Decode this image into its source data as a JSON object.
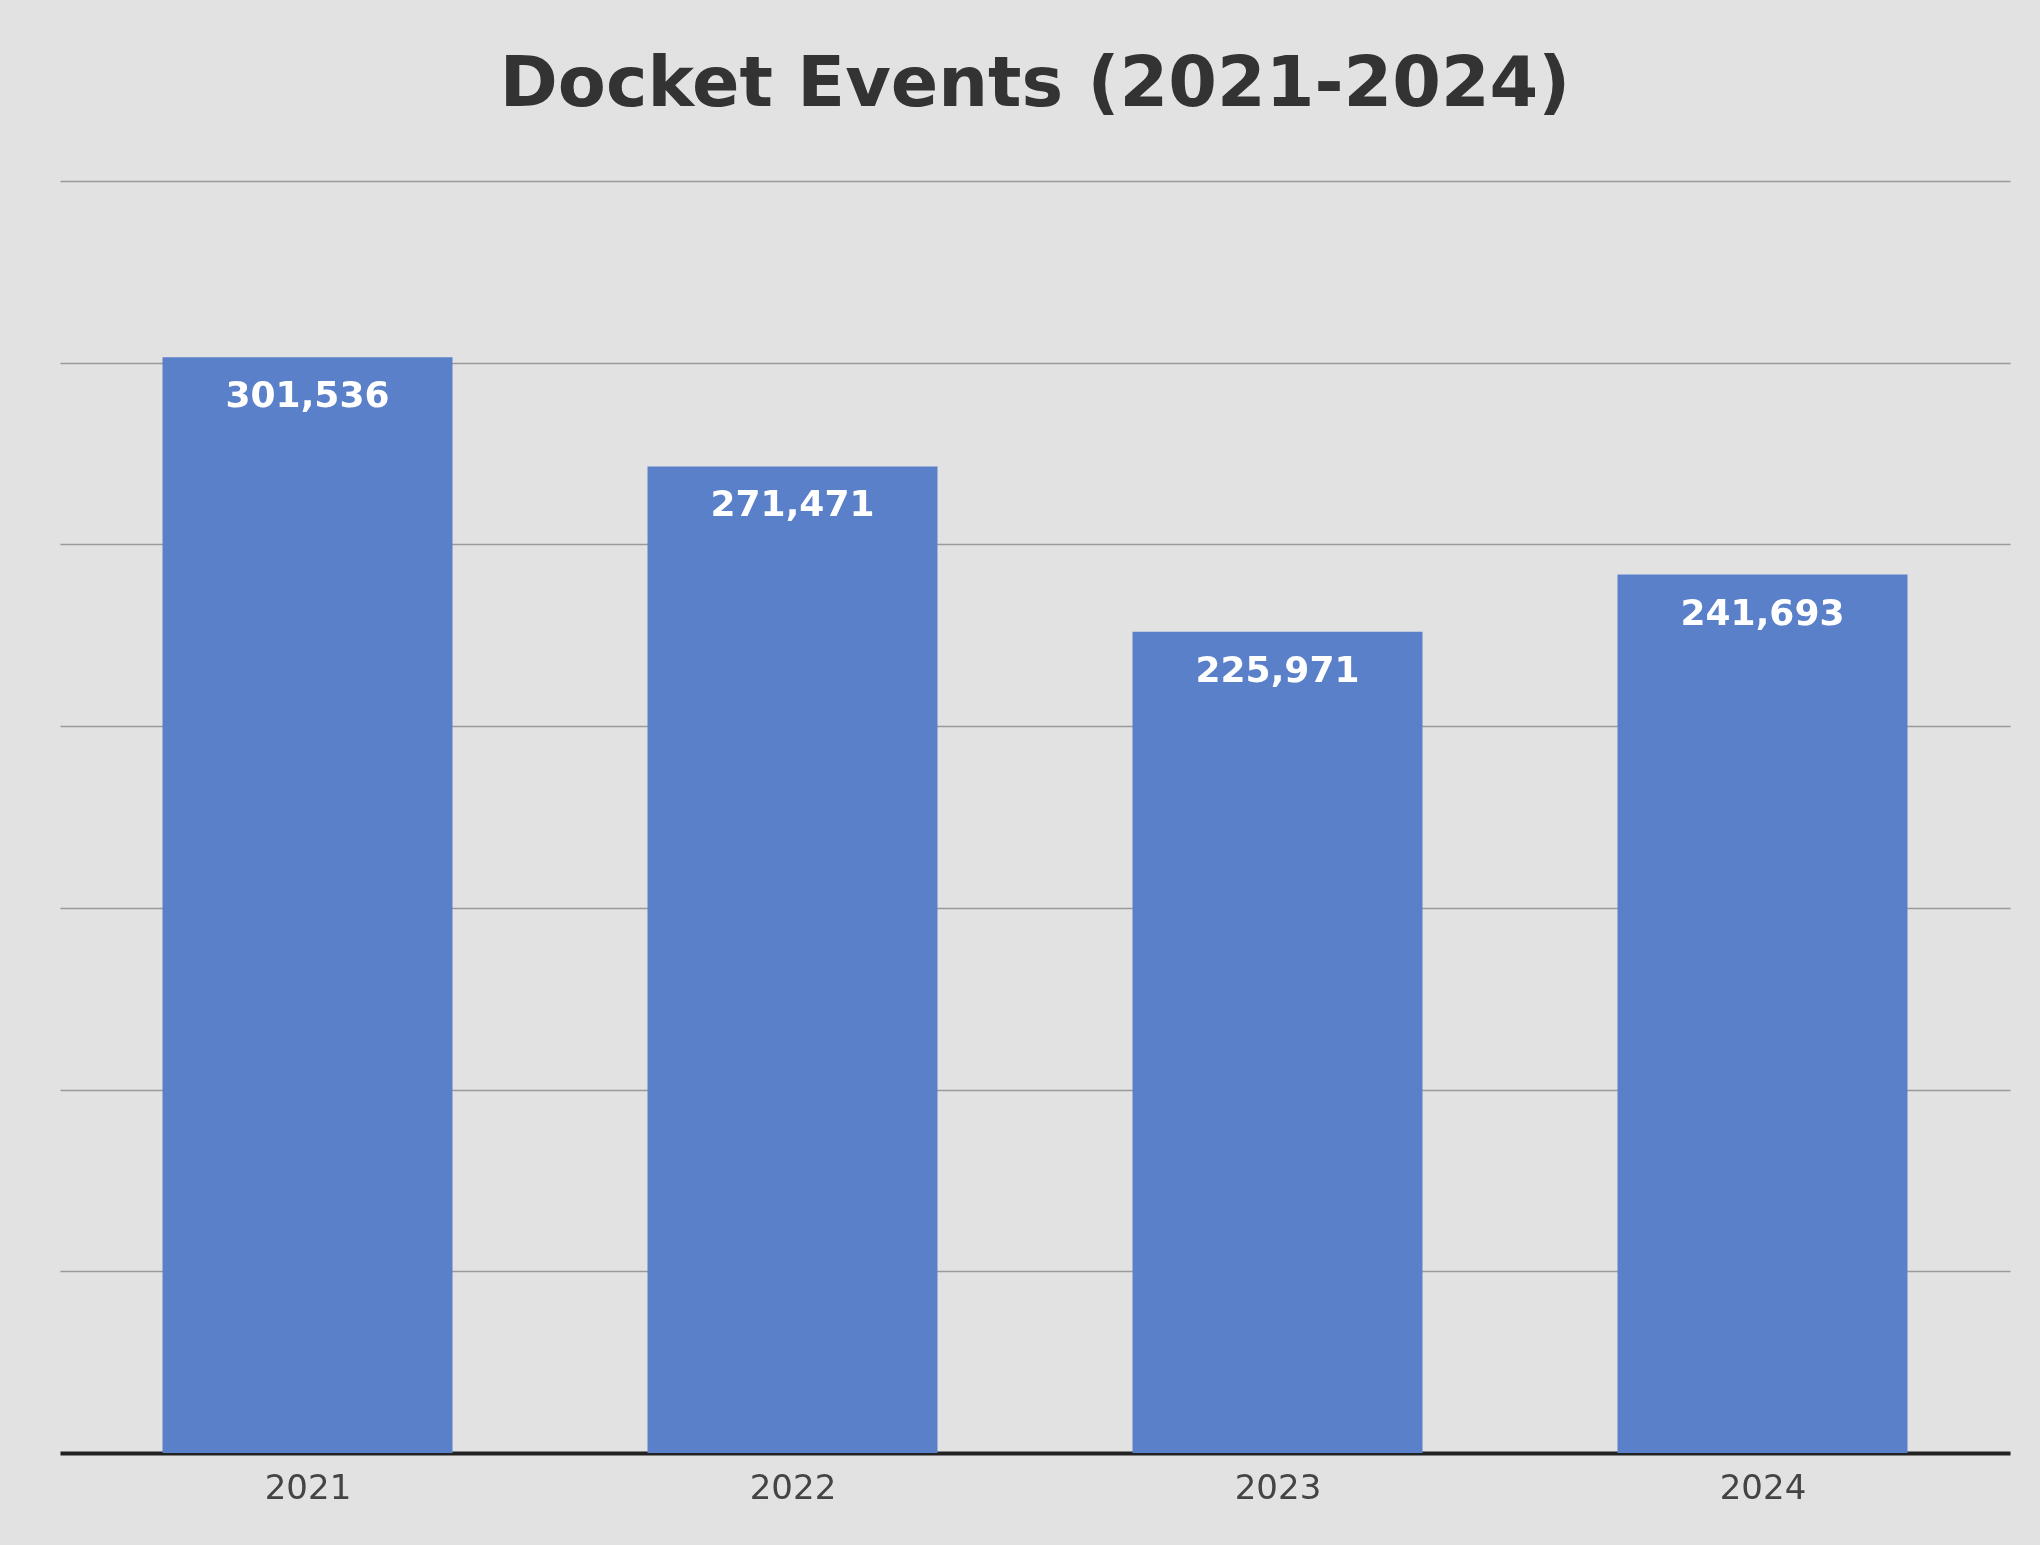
{
  "chart_data": {
    "type": "bar",
    "title": "Docket Events (2021-2024)",
    "categories": [
      "2021",
      "2022",
      "2023",
      "2024"
    ],
    "values": [
      301536,
      271471,
      225971,
      241693
    ],
    "value_labels": [
      "301,536",
      "271,471",
      "225,971",
      "241,693"
    ],
    "color": "#5a80c9",
    "tick_labels": "x",
    "grid": "y"
  }
}
